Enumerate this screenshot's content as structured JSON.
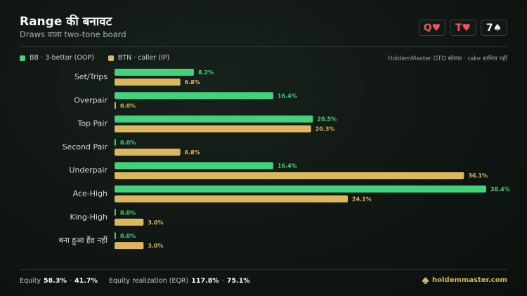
{
  "header": {
    "title": "Range की बनावट",
    "subtitle": "Draws वाला two-tone board"
  },
  "board": [
    {
      "rank": "Q",
      "suit": "♥",
      "color": "#f0545c"
    },
    {
      "rank": "T",
      "suit": "♥",
      "color": "#f0545c"
    },
    {
      "rank": "7",
      "suit": "♠",
      "color": "#f2f4f3"
    }
  ],
  "chart_data": {
    "type": "bar",
    "orientation": "horizontal",
    "source_note": "HoldemMaster GTO सॉल्वर · rake शामिल नहीं",
    "categories": [
      "Set/Trips",
      "Overpair",
      "Top Pair",
      "Second Pair",
      "Underpair",
      "Ace-High",
      "King-High",
      "बना हुआ हैंड नहीं"
    ],
    "series": [
      {
        "name": "BB · 3-bettor (OOP)",
        "color": "#43d27c",
        "values": [
          8.2,
          16.4,
          20.5,
          0.0,
          16.4,
          38.4,
          0.0,
          0.0
        ],
        "value_labels": [
          "8.2%",
          "16.4%",
          "20.5%",
          "0.0%",
          "16.4%",
          "38.4%",
          "0.0%",
          "0.0%"
        ]
      },
      {
        "name": "BTN · caller (IP)",
        "color": "#dcb75e",
        "values": [
          6.8,
          0.0,
          20.3,
          6.8,
          36.1,
          24.1,
          3.0,
          3.0
        ],
        "value_labels": [
          "6.8%",
          "0.0%",
          "20.3%",
          "6.8%",
          "36.1%",
          "24.1%",
          "3.0%",
          "3.0%"
        ]
      }
    ]
  },
  "footer": {
    "equity_label": "Equity",
    "equity": [
      "58.3%",
      "41.7%"
    ],
    "separator": "·",
    "eqr_label": "Equity realization (EQR)",
    "eqr": [
      "117.8%",
      "75.1%"
    ],
    "site": "holdemmaster.com"
  }
}
